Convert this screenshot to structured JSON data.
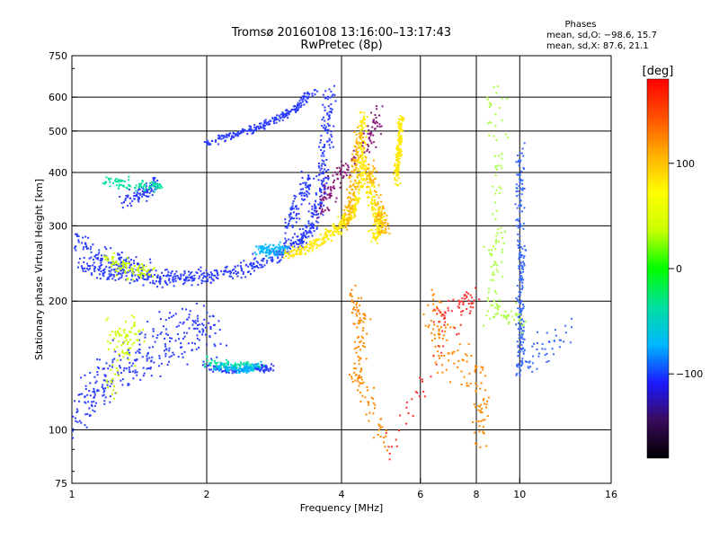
{
  "title": {
    "line1": "Tromsø 20160108 13:16:00–13:17:43",
    "line2": "RwPretec (8p)"
  },
  "stats": {
    "heading": "Phases",
    "line1": "mean, sd,O: −98.6, 15.7",
    "line2": "mean, sd,X:  87.6, 21.1"
  },
  "chart_data": {
    "type": "scatter",
    "xlabel": "Frequency [MHz]",
    "ylabel": "Stationary phase Virtual Height [km]",
    "x_scale": "log",
    "y_scale": "log",
    "xlim": [
      1,
      16
    ],
    "ylim": [
      75,
      750
    ],
    "x_ticks": [
      1,
      2,
      4,
      6,
      8,
      10,
      16
    ],
    "y_ticks": [
      75,
      100,
      200,
      300,
      400,
      500,
      600,
      750
    ],
    "x_gridlines": [
      2,
      4,
      6,
      8,
      10
    ],
    "y_gridlines": [
      100,
      200,
      300,
      400,
      500,
      600
    ],
    "grid": true,
    "colorbar": {
      "label": "[deg]",
      "range": [
        -180,
        180
      ],
      "ticks": [
        100,
        0,
        -100
      ],
      "colors": [
        "#000000",
        "#3a0a5c",
        "#1a1aff",
        "#00b8ff",
        "#00e0a0",
        "#00ff00",
        "#c8ff00",
        "#ffff00",
        "#ffb000",
        "#ff5000",
        "#ff0000"
      ]
    },
    "series": [
      {
        "color": "#2a3cff",
        "segments": [
          {
            "points": [
              [
                1.05,
                240
              ],
              [
                1.2,
                232
              ],
              [
                1.4,
                228
              ],
              [
                1.6,
                226
              ],
              [
                1.8,
                227
              ],
              [
                2.0,
                229
              ],
              [
                2.3,
                235
              ],
              [
                2.6,
                245
              ],
              [
                2.9,
                258
              ],
              [
                3.2,
                275
              ],
              [
                3.4,
                295
              ],
              [
                3.55,
                330
              ],
              [
                3.65,
                400
              ],
              [
                3.72,
                500
              ],
              [
                3.78,
                620
              ]
            ],
            "jx": 0.05,
            "jy": 0.06
          },
          {
            "points": [
              [
                1.0,
                280
              ],
              [
                1.15,
                255
              ],
              [
                1.3,
                245
              ],
              [
                1.5,
                238
              ]
            ],
            "jx": 0.06,
            "jy": 0.09
          },
          {
            "points": [
              [
                2.0,
                470
              ],
              [
                2.3,
                490
              ],
              [
                2.6,
                510
              ],
              [
                2.9,
                535
              ],
              [
                3.2,
                570
              ],
              [
                3.5,
                630
              ]
            ],
            "jx": 0.03,
            "jy": 0.03
          },
          {
            "points": [
              [
                3.0,
                300
              ],
              [
                3.2,
                340
              ],
              [
                3.4,
                390
              ]
            ],
            "jx": 0.04,
            "jy": 0.12
          }
        ]
      },
      {
        "color": "#2a3cff",
        "segments": [
          {
            "points": [
              [
                1.0,
                108
              ],
              [
                1.1,
                118
              ],
              [
                1.2,
                132
              ],
              [
                1.35,
                145
              ],
              [
                1.5,
                155
              ],
              [
                1.7,
                165
              ],
              [
                1.9,
                175
              ],
              [
                2.1,
                165
              ]
            ],
            "jx": 0.08,
            "jy": 0.22
          },
          {
            "points": [
              [
                2.0,
                140
              ],
              [
                2.3,
                138
              ],
              [
                2.6,
                140
              ],
              [
                2.8,
                139
              ]
            ],
            "jx": 0.05,
            "jy": 0.03
          },
          {
            "points": [
              [
                1.3,
                340
              ],
              [
                1.45,
                360
              ],
              [
                1.55,
                380
              ]
            ],
            "jx": 0.04,
            "jy": 0.07
          }
        ]
      },
      {
        "color": "#ffe800",
        "segments": [
          {
            "points": [
              [
                3.0,
                258
              ],
              [
                3.3,
                265
              ],
              [
                3.6,
                278
              ],
              [
                3.9,
                295
              ],
              [
                4.1,
                310
              ],
              [
                4.3,
                330
              ],
              [
                4.4,
                380
              ],
              [
                4.45,
                460
              ],
              [
                4.45,
                560
              ]
            ],
            "jx": 0.03,
            "jy": 0.05
          },
          {
            "points": [
              [
                4.5,
                420
              ],
              [
                4.65,
                360
              ],
              [
                4.8,
                320
              ],
              [
                4.9,
                300
              ],
              [
                4.7,
                280
              ]
            ],
            "jx": 0.04,
            "jy": 0.06
          },
          {
            "points": [
              [
                5.3,
                380
              ],
              [
                5.35,
                430
              ],
              [
                5.4,
                480
              ],
              [
                5.45,
                540
              ]
            ],
            "jx": 0.02,
            "jy": 0.05
          }
        ]
      },
      {
        "color": "#ffb000",
        "segments": [
          {
            "points": [
              [
                4.1,
                300
              ],
              [
                4.2,
                350
              ],
              [
                4.3,
                420
              ],
              [
                4.4,
                500
              ]
            ],
            "jx": 0.04,
            "jy": 0.08
          },
          {
            "points": [
              [
                4.6,
                430
              ],
              [
                4.9,
                330
              ],
              [
                5.0,
                290
              ]
            ],
            "jx": 0.05,
            "jy": 0.06
          }
        ]
      },
      {
        "color": "#c8ff00",
        "segments": [
          {
            "points": [
              [
                1.2,
                250
              ],
              [
                1.35,
                235
              ],
              [
                1.5,
                232
              ]
            ],
            "jx": 0.07,
            "jy": 0.06
          },
          {
            "points": [
              [
                1.2,
                165
              ],
              [
                1.4,
                170
              ],
              [
                1.2,
                125
              ]
            ],
            "jx": 0.06,
            "jy": 0.15
          }
        ]
      },
      {
        "color": "#00e0a0",
        "segments": [
          {
            "points": [
              [
                1.2,
                380
              ],
              [
                1.4,
                375
              ],
              [
                1.6,
                370
              ]
            ],
            "jx": 0.05,
            "jy": 0.05
          },
          {
            "points": [
              [
                2.0,
                145
              ],
              [
                2.3,
                140
              ],
              [
                2.6,
                142
              ]
            ],
            "jx": 0.06,
            "jy": 0.04
          }
        ]
      },
      {
        "color": "#00b8ff",
        "segments": [
          {
            "points": [
              [
                2.6,
                265
              ],
              [
                2.8,
                262
              ],
              [
                3.0,
                268
              ]
            ],
            "jx": 0.05,
            "jy": 0.05
          },
          {
            "points": [
              [
                2.1,
                140
              ],
              [
                2.4,
                138
              ],
              [
                2.6,
                141
              ]
            ],
            "jx": 0.05,
            "jy": 0.03
          }
        ]
      },
      {
        "color": "#8a1a7a",
        "segments": [
          {
            "points": [
              [
                3.6,
                320
              ],
              [
                3.8,
                380
              ],
              [
                4.6,
                460
              ],
              [
                4.8,
                560
              ]
            ],
            "jx": 0.06,
            "jy": 0.08
          }
        ]
      },
      {
        "color": "#ff8800",
        "segments": [
          {
            "points": [
              [
                4.2,
                210
              ],
              [
                4.5,
                170
              ],
              [
                4.3,
                135
              ],
              [
                5.0,
                95
              ]
            ],
            "jx": 0.05,
            "jy": 0.15
          },
          {
            "points": [
              [
                6.4,
                200
              ],
              [
                6.6,
                160
              ],
              [
                8.2,
                130
              ],
              [
                8.2,
                95
              ]
            ],
            "jx": 0.06,
            "jy": 0.2
          }
        ]
      },
      {
        "color": "#3a6aff",
        "segments": [
          {
            "points": [
              [
                10.0,
                450
              ],
              [
                10.0,
                350
              ],
              [
                10.1,
                250
              ],
              [
                10.0,
                200
              ],
              [
                10.1,
                165
              ],
              [
                10.0,
                140
              ],
              [
                13.0,
                170
              ]
            ],
            "jx": 0.03,
            "jy": 0.12
          }
        ]
      },
      {
        "color": "#aaff40",
        "segments": [
          {
            "points": [
              [
                8.8,
                660
              ],
              [
                9.0,
                300
              ],
              [
                8.6,
                190
              ],
              [
                10.2,
                180
              ]
            ],
            "jx": 0.08,
            "jy": 0.1
          }
        ]
      },
      {
        "color": "#ff3030",
        "segments": [
          {
            "points": [
              [
                6.5,
                180
              ],
              [
                8.0,
                210
              ],
              [
                5.0,
                88
              ]
            ],
            "jx": 0.06,
            "jy": 0.08
          }
        ]
      }
    ]
  }
}
